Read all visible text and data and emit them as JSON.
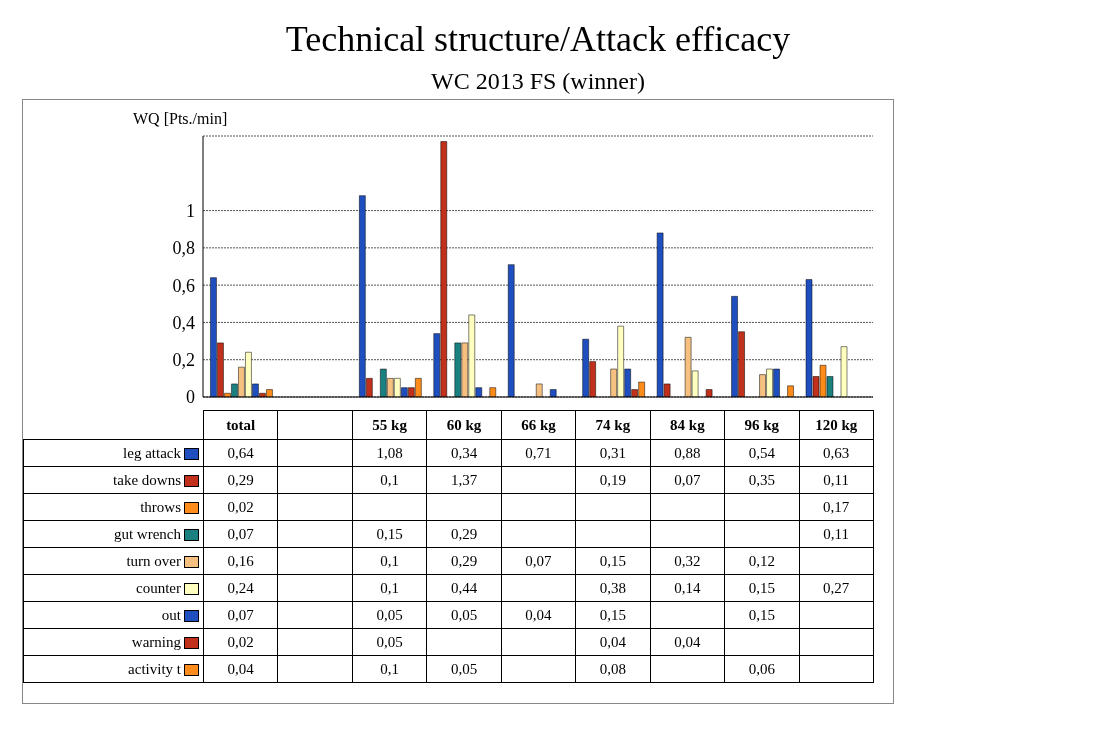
{
  "chart_data": {
    "type": "bar",
    "title": "Technical structure/Attack efficacy",
    "subtitle": "WC 2013   FS  (winner)",
    "ylabel": "WQ [Pts./min]",
    "categories": [
      "total",
      null,
      "55 kg",
      "60 kg",
      "66 kg",
      "74 kg",
      "84 kg",
      "96 kg",
      "120 kg"
    ],
    "ylim": [
      0,
      1.4
    ],
    "yticks": [
      0,
      {
        "value": 0.2,
        "label": "0,2"
      },
      {
        "value": 0.4,
        "label": "0,4"
      },
      {
        "value": 0.6,
        "label": "0,6"
      },
      {
        "value": 0.8,
        "label": "0,8"
      },
      1
    ],
    "grid": "y",
    "legend": "bottom left",
    "series": [
      {
        "name": "leg attack",
        "color": "#1f4fbf",
        "values": [
          0.64,
          null,
          1.08,
          0.34,
          0.71,
          0.31,
          0.88,
          0.54,
          0.63
        ],
        "value_labels": [
          "0,64",
          null,
          "1,08",
          "0,34",
          "0,71",
          "0,31",
          "0,88",
          "0,54",
          "0,63"
        ]
      },
      {
        "name": "take downs",
        "color": "#c0301a",
        "values": [
          0.29,
          null,
          0.1,
          1.37,
          null,
          0.19,
          0.07,
          0.35,
          0.11
        ],
        "value_labels": [
          "0,29",
          null,
          "0,1",
          "1,37",
          null,
          "0,19",
          "0,07",
          "0,35",
          "0,11"
        ]
      },
      {
        "name": "throws",
        "color": "#ff8c1a",
        "values": [
          0.02,
          null,
          null,
          null,
          null,
          null,
          null,
          null,
          0.17
        ],
        "value_labels": [
          "0,02",
          null,
          null,
          null,
          null,
          null,
          null,
          null,
          "0,17"
        ]
      },
      {
        "name": "gut wrench",
        "color": "#1a8080",
        "values": [
          0.07,
          null,
          0.15,
          0.29,
          null,
          null,
          null,
          null,
          0.11
        ],
        "value_labels": [
          "0,07",
          null,
          "0,15",
          "0,29",
          null,
          null,
          null,
          null,
          "0,11"
        ]
      },
      {
        "name": "turn over",
        "color": "#f5c080",
        "values": [
          0.16,
          null,
          0.1,
          0.29,
          0.07,
          0.15,
          0.32,
          0.12,
          null
        ],
        "value_labels": [
          "0,16",
          null,
          "0,1",
          "0,29",
          "0,07",
          "0,15",
          "0,32",
          "0,12",
          null
        ]
      },
      {
        "name": "counter",
        "color": "#ffffc0",
        "values": [
          0.24,
          null,
          0.1,
          0.44,
          null,
          0.38,
          0.14,
          0.15,
          0.27
        ],
        "value_labels": [
          "0,24",
          null,
          "0,1",
          "0,44",
          null,
          "0,38",
          "0,14",
          "0,15",
          "0,27"
        ]
      },
      {
        "name": "out",
        "color": "#1f4fbf",
        "values": [
          0.07,
          null,
          0.05,
          0.05,
          0.04,
          0.15,
          null,
          0.15,
          null
        ],
        "value_labels": [
          "0,07",
          null,
          "0,05",
          "0,05",
          "0,04",
          "0,15",
          null,
          "0,15",
          null
        ]
      },
      {
        "name": "warning",
        "color": "#c0301a",
        "values": [
          0.02,
          null,
          0.05,
          null,
          null,
          0.04,
          0.04,
          null,
          null
        ],
        "value_labels": [
          "0,02",
          null,
          "0,05",
          null,
          null,
          "0,04",
          "0,04",
          null,
          null
        ]
      },
      {
        "name": "activity t",
        "color": "#ff8c1a",
        "values": [
          0.04,
          null,
          0.1,
          0.05,
          null,
          0.08,
          null,
          0.06,
          null
        ],
        "value_labels": [
          "0,04",
          null,
          "0,1",
          "0,05",
          null,
          "0,08",
          null,
          "0,06",
          null
        ]
      }
    ]
  }
}
